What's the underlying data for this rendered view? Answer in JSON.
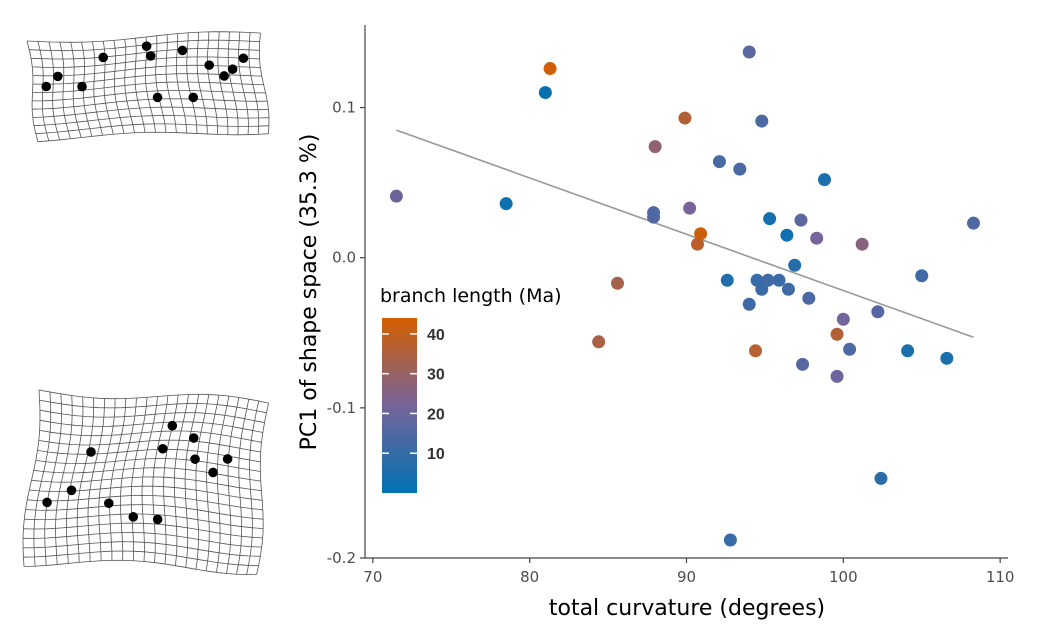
{
  "chart_data": {
    "type": "scatter",
    "title": "",
    "xlabel": "total curvature (degrees)",
    "ylabel": "PC1 of shape space (35.3 %)",
    "xlim": [
      69.5,
      110.5
    ],
    "ylim": [
      -0.2,
      0.155
    ],
    "xticks": [
      {
        "value": 70,
        "label": "70"
      },
      {
        "value": 80,
        "label": "80"
      },
      {
        "value": 90,
        "label": "90"
      },
      {
        "value": 100,
        "label": "100"
      },
      {
        "value": 110,
        "label": "110"
      }
    ],
    "yticks": [
      {
        "value": 0.1,
        "label": "0.1"
      },
      {
        "value": 0.0,
        "label": "0.0"
      },
      {
        "value": -0.1,
        "label": "-0.1"
      },
      {
        "value": -0.2,
        "label": "-0.2"
      }
    ],
    "grid": false,
    "trend_line": {
      "x": [
        71.5,
        108.3
      ],
      "y": [
        0.085,
        -0.053
      ],
      "color": "#999999"
    },
    "color_scale": {
      "title": "branch length (Ma)",
      "min": 0,
      "max": 44,
      "low_color": "#0072b2",
      "high_color": "#d55e00",
      "ticks": [
        {
          "value": 10,
          "label": "10"
        },
        {
          "value": 20,
          "label": "20"
        },
        {
          "value": 30,
          "label": "30"
        },
        {
          "value": 40,
          "label": "40"
        }
      ]
    },
    "points": [
      {
        "x": 71.5,
        "y": 0.041,
        "c": 20
      },
      {
        "x": 78.5,
        "y": 0.036,
        "c": 2
      },
      {
        "x": 81.0,
        "y": 0.11,
        "c": 1
      },
      {
        "x": 81.3,
        "y": 0.126,
        "c": 43
      },
      {
        "x": 84.4,
        "y": -0.056,
        "c": 34
      },
      {
        "x": 85.6,
        "y": -0.017,
        "c": 33
      },
      {
        "x": 88.0,
        "y": 0.074,
        "c": 28
      },
      {
        "x": 87.9,
        "y": 0.027,
        "c": 16
      },
      {
        "x": 87.9,
        "y": 0.03,
        "c": 15
      },
      {
        "x": 89.9,
        "y": 0.093,
        "c": 36
      },
      {
        "x": 90.2,
        "y": 0.033,
        "c": 22
      },
      {
        "x": 90.7,
        "y": 0.009,
        "c": 38
      },
      {
        "x": 90.9,
        "y": 0.016,
        "c": 42
      },
      {
        "x": 92.1,
        "y": 0.064,
        "c": 13
      },
      {
        "x": 92.6,
        "y": -0.015,
        "c": 6
      },
      {
        "x": 92.8,
        "y": -0.188,
        "c": 10
      },
      {
        "x": 93.4,
        "y": 0.059,
        "c": 14
      },
      {
        "x": 94.0,
        "y": 0.137,
        "c": 17
      },
      {
        "x": 94.0,
        "y": -0.031,
        "c": 12
      },
      {
        "x": 94.4,
        "y": -0.062,
        "c": 37
      },
      {
        "x": 94.5,
        "y": -0.015,
        "c": 10
      },
      {
        "x": 94.8,
        "y": 0.091,
        "c": 14
      },
      {
        "x": 94.8,
        "y": -0.021,
        "c": 11
      },
      {
        "x": 95.2,
        "y": -0.015,
        "c": 12
      },
      {
        "x": 95.3,
        "y": 0.026,
        "c": 4
      },
      {
        "x": 95.9,
        "y": -0.015,
        "c": 11
      },
      {
        "x": 96.4,
        "y": 0.015,
        "c": 3
      },
      {
        "x": 96.5,
        "y": -0.021,
        "c": 12
      },
      {
        "x": 96.9,
        "y": -0.005,
        "c": 7
      },
      {
        "x": 97.3,
        "y": 0.025,
        "c": 17
      },
      {
        "x": 97.4,
        "y": -0.071,
        "c": 16
      },
      {
        "x": 97.8,
        "y": -0.027,
        "c": 14
      },
      {
        "x": 98.3,
        "y": 0.013,
        "c": 22
      },
      {
        "x": 98.8,
        "y": 0.052,
        "c": 5
      },
      {
        "x": 99.6,
        "y": -0.079,
        "c": 20
      },
      {
        "x": 99.6,
        "y": -0.051,
        "c": 36
      },
      {
        "x": 100.0,
        "y": -0.041,
        "c": 21
      },
      {
        "x": 100.4,
        "y": -0.061,
        "c": 14
      },
      {
        "x": 101.2,
        "y": 0.009,
        "c": 26
      },
      {
        "x": 102.2,
        "y": -0.036,
        "c": 16
      },
      {
        "x": 102.4,
        "y": -0.147,
        "c": 8
      },
      {
        "x": 104.1,
        "y": -0.062,
        "c": 5
      },
      {
        "x": 105.0,
        "y": -0.012,
        "c": 12
      },
      {
        "x": 106.6,
        "y": -0.067,
        "c": 5
      },
      {
        "x": 108.3,
        "y": 0.023,
        "c": 15
      }
    ]
  },
  "shape_insets": [
    {
      "name": "upper-deformation-grid",
      "landmarks": [
        [
          0.06,
          0.44
        ],
        [
          0.11,
          0.34
        ],
        [
          0.22,
          0.46
        ],
        [
          0.31,
          0.17
        ],
        [
          0.5,
          0.1
        ],
        [
          0.52,
          0.21
        ],
        [
          0.54,
          0.65
        ],
        [
          0.69,
          0.65
        ],
        [
          0.66,
          0.18
        ],
        [
          0.78,
          0.33
        ],
        [
          0.88,
          0.36
        ],
        [
          0.84,
          0.43
        ],
        [
          0.93,
          0.25
        ]
      ]
    },
    {
      "name": "lower-deformation-grid",
      "landmarks": [
        [
          0.09,
          0.62
        ],
        [
          0.19,
          0.55
        ],
        [
          0.24,
          0.32
        ],
        [
          0.36,
          0.65
        ],
        [
          0.46,
          0.74
        ],
        [
          0.56,
          0.75
        ],
        [
          0.57,
          0.33
        ],
        [
          0.59,
          0.19
        ],
        [
          0.7,
          0.26
        ],
        [
          0.72,
          0.38
        ],
        [
          0.8,
          0.44
        ],
        [
          0.86,
          0.35
        ]
      ]
    }
  ]
}
